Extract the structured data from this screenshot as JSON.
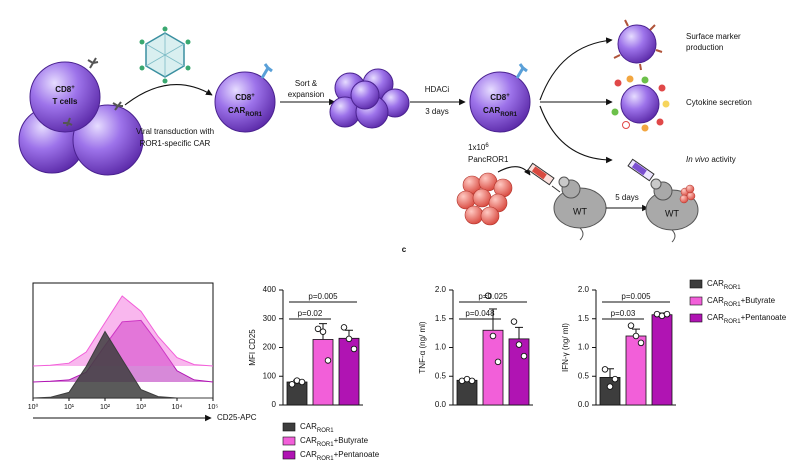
{
  "schematic": {
    "tcell_label": {
      "main": "CD8",
      "sup": "+",
      "line2": "T cells"
    },
    "transduction": [
      "Viral transduction with",
      "ROR1-specific CAR"
    ],
    "car_cell_1": {
      "main": "CD8",
      "sup": "+",
      "car": "CAR",
      "sub": "ROR1"
    },
    "sort": [
      "Sort &",
      "expansion"
    ],
    "hdaci": [
      "HDACi",
      "3 days"
    ],
    "car_cell_2": {
      "main": "CD8",
      "sup": "+",
      "car": "CAR",
      "sub": "ROR1"
    },
    "surface": [
      "Surface marker",
      "production"
    ],
    "cytokine": "Cytokine secretion",
    "invivo": {
      "italic": "In vivo",
      "rest": "activity"
    },
    "tumor": {
      "dose": "1x10",
      "exp": "6",
      "name": "PancROR1"
    },
    "mouse_1": "WT",
    "wait": "5 days",
    "mouse_2": "WT"
  },
  "panel_label": "c",
  "chart_data": [
    {
      "type": "density",
      "xlabel": "CD25-APC",
      "log_x": true,
      "xlim": [
        1,
        100000
      ],
      "xticks": [
        {
          "value": 1,
          "label": "10⁰"
        },
        {
          "value": 10,
          "label": "10¹"
        },
        {
          "value": 100,
          "label": "10²"
        },
        {
          "value": 1000,
          "label": "10³"
        },
        {
          "value": 10000,
          "label": "10⁴"
        },
        {
          "value": 100000,
          "label": "10⁵"
        }
      ],
      "ylim": [
        0,
        100
      ],
      "x": [
        1,
        3,
        10,
        30,
        100,
        300,
        1000,
        3000,
        10000,
        30000,
        100000
      ],
      "series": [
        {
          "color": "#3d3d3d",
          "values": [
            0,
            1,
            8,
            45,
            95,
            55,
            12,
            2,
            0,
            0,
            0
          ]
        },
        {
          "color": "#f25fd9",
          "values": [
            0,
            1,
            4,
            20,
            62,
            100,
            78,
            42,
            12,
            2,
            0
          ]
        },
        {
          "color": "#b014b3",
          "values": [
            0,
            1,
            3,
            14,
            52,
            86,
            88,
            55,
            16,
            3,
            0
          ]
        }
      ]
    },
    {
      "type": "bar",
      "ylabel": "MFI CD25",
      "ylim": [
        0,
        400
      ],
      "yticks": [
        0,
        100,
        200,
        300,
        400
      ],
      "annotations": [
        "p=0.02",
        "p=0.005"
      ],
      "legend": "below",
      "series": [
        {
          "name": [
            "CAR",
            "ROR1"
          ],
          "color": "#3d3d3d",
          "mean": 80,
          "error": 6,
          "points": [
            72,
            85,
            80
          ]
        },
        {
          "name": [
            "CAR",
            "ROR1",
            "+Butyrate"
          ],
          "color": "#f25fd9",
          "mean": 228,
          "error": 55,
          "points": [
            265,
            255,
            155
          ]
        },
        {
          "name": [
            "CAR",
            "ROR1",
            "+Pentanoate"
          ],
          "color": "#b014b3",
          "mean": 232,
          "error": 28,
          "points": [
            270,
            230,
            195
          ]
        }
      ]
    },
    {
      "type": "bar",
      "ylabel": "TNF-α (ng/ ml)",
      "ylim": [
        0,
        2
      ],
      "yticks": [
        {
          "value": 0,
          "label": "0.0"
        },
        0.5,
        {
          "value": 1,
          "label": "1.0"
        },
        1.5,
        {
          "value": 2,
          "label": "2.0"
        }
      ],
      "annotations": [
        "p=0.048",
        "p=0.025"
      ],
      "series": [
        {
          "color": "#3d3d3d",
          "mean": 0.43,
          "error": 0.03,
          "points": [
            0.42,
            0.45,
            0.42
          ]
        },
        {
          "color": "#f25fd9",
          "mean": 1.3,
          "error": 0.37,
          "points": [
            1.9,
            1.2,
            0.75
          ]
        },
        {
          "color": "#b014b3",
          "mean": 1.15,
          "error": 0.2,
          "points": [
            1.45,
            1.05,
            0.85
          ]
        }
      ]
    },
    {
      "type": "bar",
      "ylabel": "IFN-γ (ng/ ml)",
      "ylim": [
        0,
        2
      ],
      "yticks": [
        {
          "value": 0,
          "label": "0.0"
        },
        0.5,
        {
          "value": 1,
          "label": "1.0"
        },
        1.5,
        {
          "value": 2,
          "label": "2.0"
        }
      ],
      "annotations": [
        "p=0.03",
        "p=0.005"
      ],
      "legend": "right",
      "series": [
        {
          "name": [
            "CAR",
            "ROR1"
          ],
          "color": "#3d3d3d",
          "mean": 0.48,
          "error": 0.15,
          "points": [
            0.62,
            0.32,
            0.45
          ]
        },
        {
          "name": [
            "CAR",
            "ROR1",
            "+Butyrate"
          ],
          "color": "#f25fd9",
          "mean": 1.2,
          "error": 0.12,
          "points": [
            1.38,
            1.2,
            1.08
          ]
        },
        {
          "name": [
            "CAR",
            "ROR1",
            "+Pentanoate"
          ],
          "color": "#b014b3",
          "mean": 1.57,
          "error": 0.03,
          "points": [
            1.58,
            1.55,
            1.58
          ]
        }
      ]
    }
  ]
}
